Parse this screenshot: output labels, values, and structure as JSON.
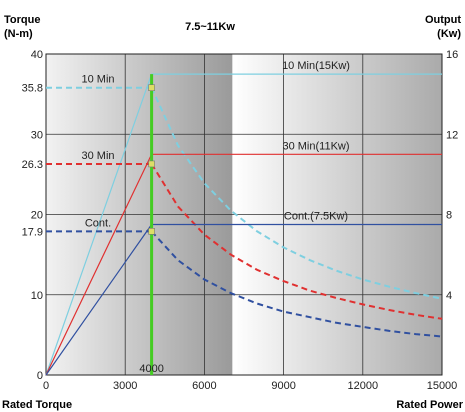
{
  "chart_data": {
    "type": "line",
    "title": "7.5~11Kw",
    "left_axis": {
      "label_line1": "Torque",
      "label_line2": "(N-m)",
      "ylim": [
        0,
        40
      ],
      "ticks": [
        0,
        10,
        20,
        30,
        40
      ]
    },
    "right_axis": {
      "label_line1": "Output",
      "label_line2": "(Kw)",
      "ylim": [
        0,
        16
      ],
      "ticks": [
        4,
        8,
        12,
        16
      ]
    },
    "x_axis": {
      "xlim": [
        0,
        15000
      ],
      "ticks": [
        0,
        3000,
        6000,
        9000,
        12000,
        15000
      ]
    },
    "left_caption": "Rated Torque",
    "right_caption": "Rated Power",
    "base_speed": 4000,
    "base_speed_label": "4000",
    "torque_marks": [
      {
        "value": 35.8,
        "label": "35.8"
      },
      {
        "value": 26.3,
        "label": "26.3"
      },
      {
        "value": 17.9,
        "label": "17.9"
      }
    ],
    "grid": true,
    "series": [
      {
        "name": "10 Min",
        "power_label": "10 Min(15Kw)",
        "color": "#7ecfe0",
        "torque_at_base": 35.8,
        "power_kw": 15,
        "power_x": [
          0,
          4000,
          15000
        ],
        "power_y": [
          0,
          15,
          15
        ],
        "torque_x": [
          4000,
          5000,
          6000,
          7000,
          8000,
          9000,
          10000,
          11000,
          12000,
          13000,
          14000,
          15000
        ],
        "torque_y": [
          35.8,
          28.6,
          23.9,
          20.5,
          17.9,
          15.9,
          14.3,
          13.0,
          11.9,
          11.0,
          10.2,
          9.5
        ]
      },
      {
        "name": "30 Min",
        "power_label": "30 Min(11Kw)",
        "color": "#e03030",
        "torque_at_base": 26.3,
        "power_kw": 11,
        "power_x": [
          0,
          4000,
          15000
        ],
        "power_y": [
          0,
          11,
          11
        ],
        "torque_x": [
          4000,
          5000,
          6000,
          7000,
          8000,
          9000,
          10000,
          11000,
          12000,
          13000,
          14000,
          15000
        ],
        "torque_y": [
          26.3,
          21.0,
          17.5,
          15.0,
          13.1,
          11.7,
          10.5,
          9.6,
          8.8,
          8.1,
          7.5,
          7.0
        ]
      },
      {
        "name": "Cont.",
        "power_label": "Cont.(7.5Kw)",
        "color": "#3050a0",
        "torque_at_base": 17.9,
        "power_kw": 7.5,
        "power_x": [
          0,
          4000,
          15000
        ],
        "power_y": [
          0,
          7.5,
          7.5
        ],
        "torque_x": [
          4000,
          5000,
          6000,
          7000,
          8000,
          9000,
          10000,
          11000,
          12000,
          13000,
          14000,
          15000
        ],
        "torque_y": [
          17.9,
          14.3,
          11.9,
          10.2,
          8.9,
          7.9,
          7.2,
          6.5,
          6.0,
          5.5,
          5.1,
          4.8
        ]
      }
    ],
    "base_line_color": "#44cc22"
  }
}
